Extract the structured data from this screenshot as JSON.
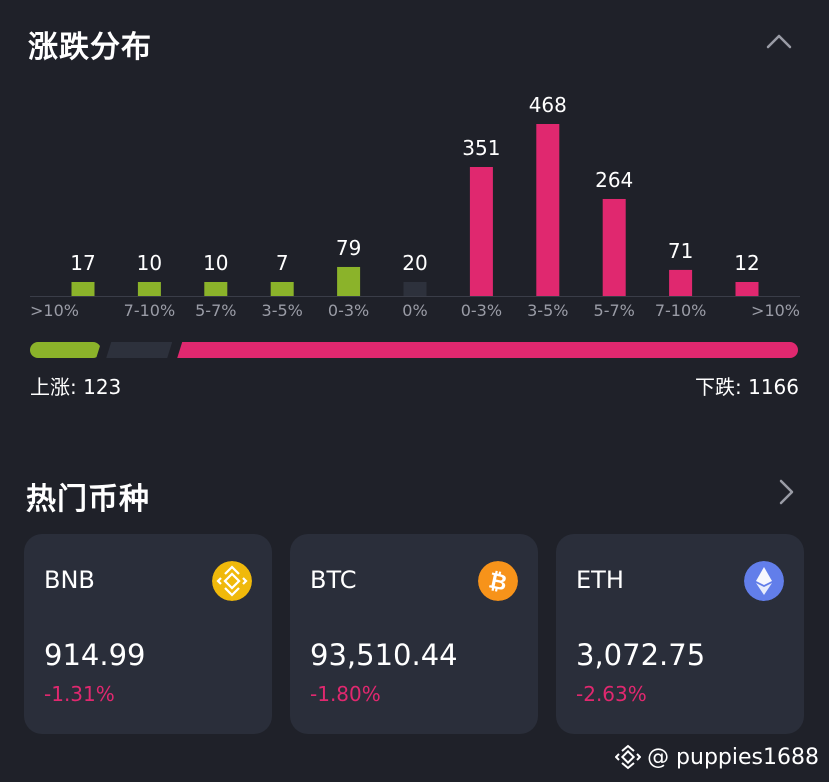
{
  "distribution": {
    "title": "涨跌分布",
    "collapse_icon": "chevron-up-icon",
    "up_label": "上涨: 123",
    "down_label": "下跌: 1166",
    "up_count": 123,
    "flat_count": 20,
    "down_count": 1166,
    "colors": {
      "up": "#8bb32a",
      "flat": "#2d313c",
      "down": "#e0286f"
    }
  },
  "chart_data": {
    "type": "bar",
    "categories": [
      ">10%",
      "7-10%",
      "5-7%",
      "3-5%",
      "0-3%",
      "0%",
      "0-3%",
      "3-5%",
      "5-7%",
      "7-10%",
      ">10%"
    ],
    "values": [
      17,
      10,
      10,
      7,
      79,
      20,
      351,
      468,
      264,
      71,
      12
    ],
    "bar_groups": [
      "up",
      "up",
      "up",
      "up",
      "up",
      "flat",
      "down",
      "down",
      "down",
      "down",
      "down"
    ],
    "title": "",
    "xlabel": "",
    "ylabel": ""
  },
  "hot_coins": {
    "title": "热门币种",
    "more_icon": "chevron-right-icon",
    "coins": [
      {
        "name": "BNB",
        "price": "914.99",
        "change": "-1.31%",
        "icon": "bnb-icon",
        "icon_color": "#f0b90b"
      },
      {
        "name": "BTC",
        "price": "93,510.44",
        "change": "-1.80%",
        "icon": "btc-icon",
        "icon_color": "#f7931a"
      },
      {
        "name": "ETH",
        "price": "3,072.75",
        "change": "-2.63%",
        "icon": "eth-icon",
        "icon_color": "#627eea"
      }
    ]
  },
  "watermark": {
    "text": "@ puppies1688",
    "icon": "binance-square-icon"
  }
}
